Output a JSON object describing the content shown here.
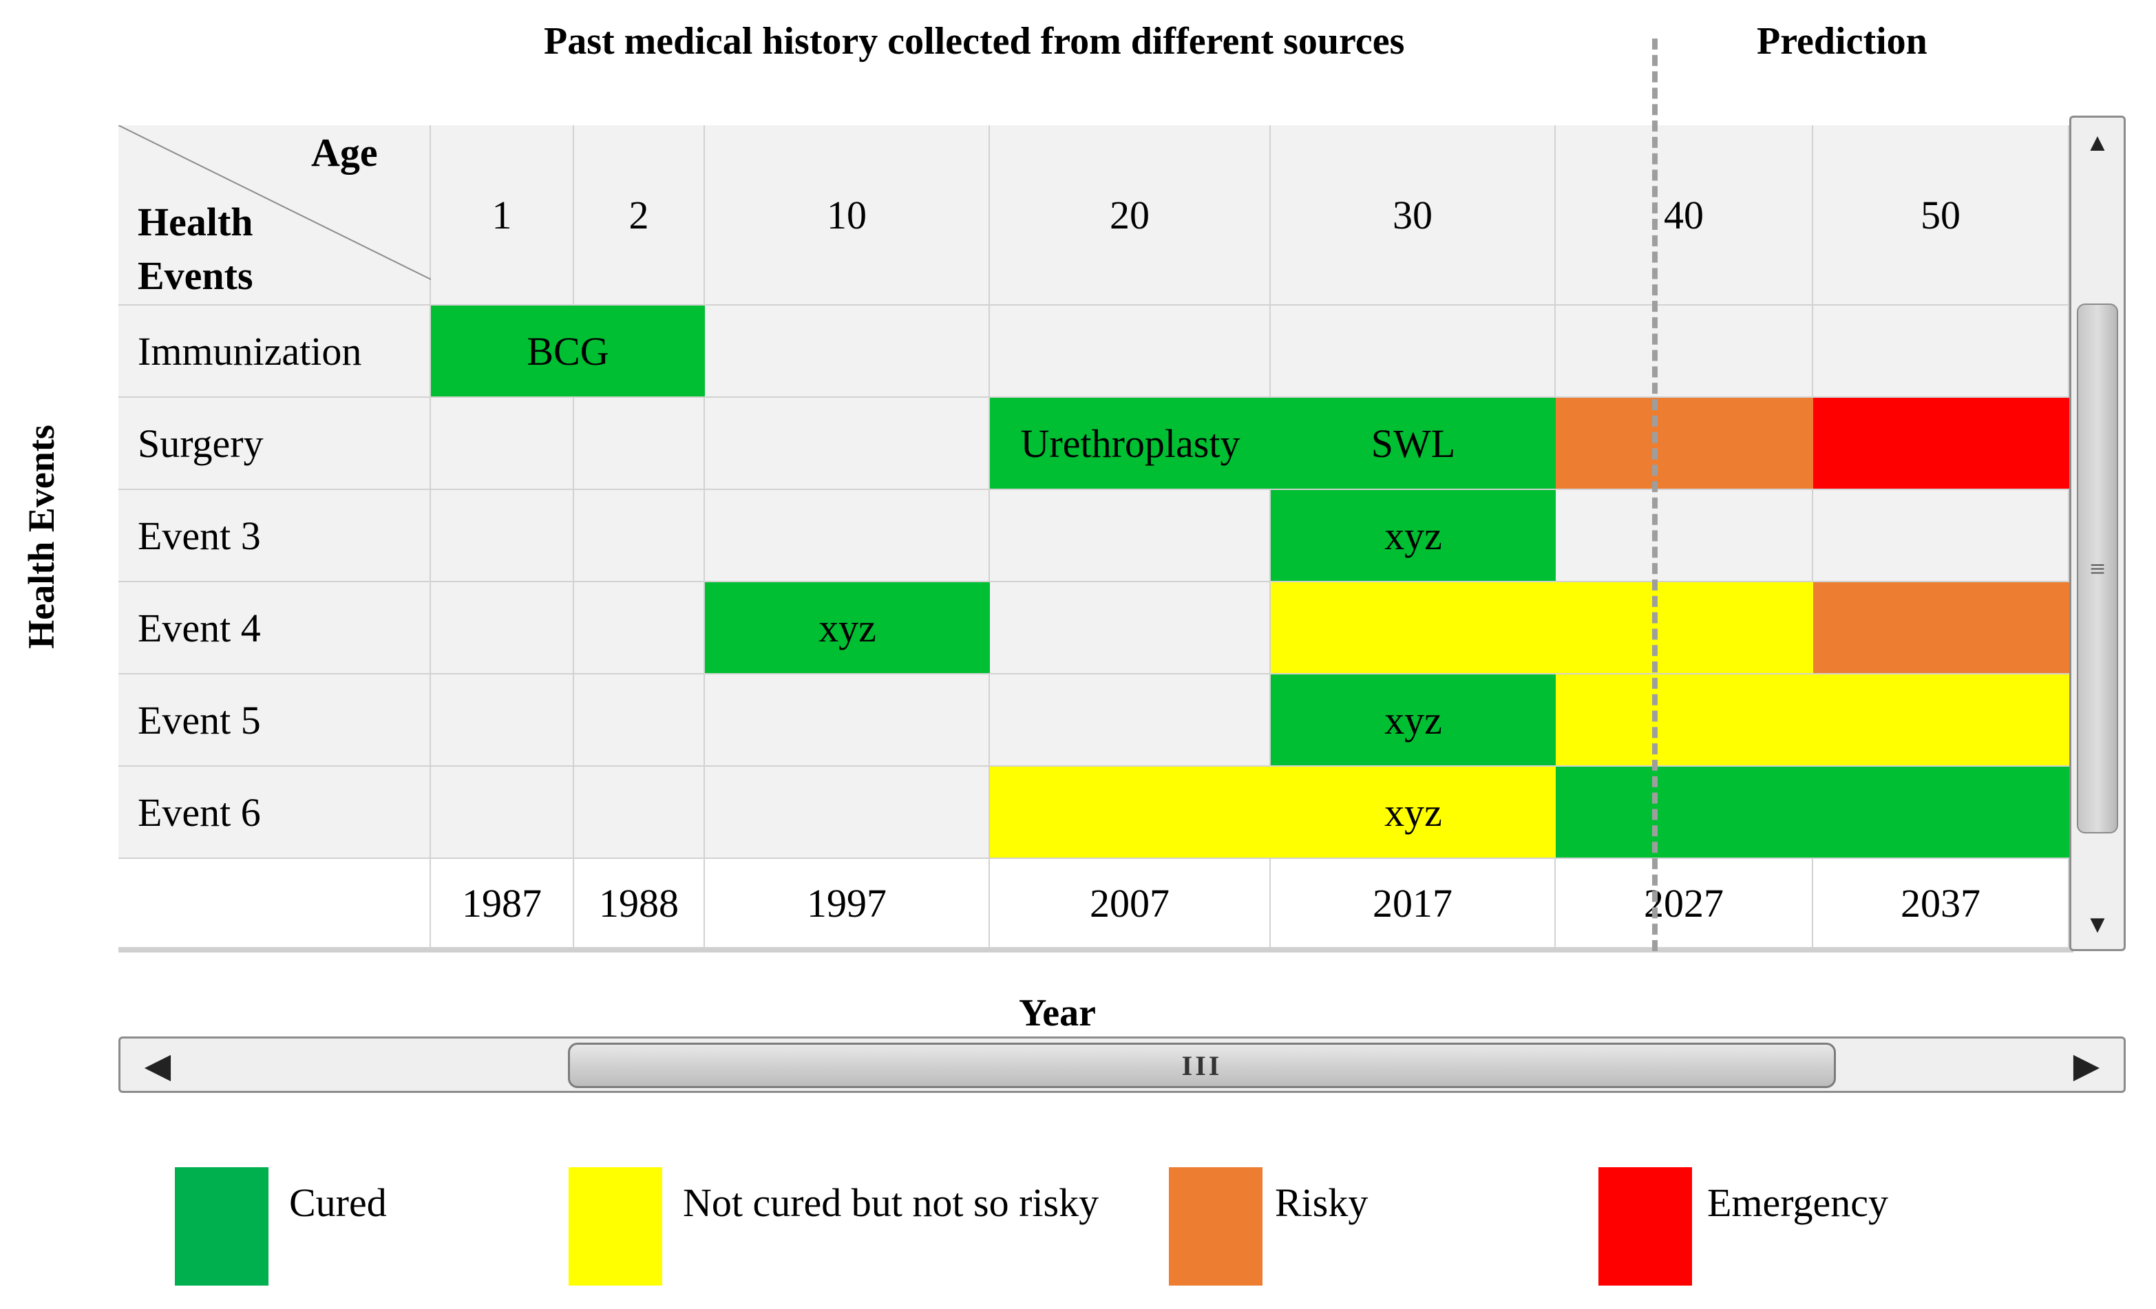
{
  "titles": {
    "history": "Past medical history collected from different sources",
    "prediction": "Prediction"
  },
  "axes": {
    "y_label": "Health Events",
    "x_label": "Year"
  },
  "header": {
    "corner_age": "Age",
    "corner_health": "Health\nEvents",
    "ages": [
      "1",
      "2",
      "10",
      "20",
      "30",
      "40",
      "50"
    ],
    "years": [
      "1987",
      "1988",
      "1997",
      "2007",
      "2017",
      "2027",
      "2037"
    ]
  },
  "rows": [
    {
      "label": "Immunization",
      "events": [
        {
          "start": 0,
          "span": 2,
          "status": "cured",
          "text": "BCG"
        }
      ]
    },
    {
      "label": "Surgery",
      "events": [
        {
          "start": 3,
          "span": 1,
          "status": "cured",
          "text": "Urethroplasty"
        },
        {
          "start": 4,
          "span": 1,
          "status": "cured",
          "text": "SWL"
        },
        {
          "start": 5,
          "span": 1,
          "status": "risky",
          "text": ""
        },
        {
          "start": 6,
          "span": 1,
          "status": "emergency",
          "text": ""
        }
      ]
    },
    {
      "label": "Event 3",
      "events": [
        {
          "start": 4,
          "span": 1,
          "status": "cured",
          "text": "xyz"
        }
      ]
    },
    {
      "label": "Event 4",
      "events": [
        {
          "start": 2,
          "span": 1,
          "status": "cured",
          "text": "xyz"
        },
        {
          "start": 4,
          "span": 2,
          "status": "not_risky",
          "text": ""
        },
        {
          "start": 6,
          "span": 1,
          "status": "risky",
          "text": ""
        }
      ]
    },
    {
      "label": "Event 5",
      "events": [
        {
          "start": 4,
          "span": 1,
          "status": "cured",
          "text": "xyz"
        },
        {
          "start": 5,
          "span": 2,
          "status": "not_risky",
          "text": ""
        }
      ]
    },
    {
      "label": "Event 6",
      "events": [
        {
          "start": 3,
          "span": 1,
          "status": "not_risky",
          "text": ""
        },
        {
          "start": 4,
          "span": 1,
          "status": "not_risky",
          "text": "xyz"
        },
        {
          "start": 5,
          "span": 2,
          "status": "cured",
          "text": ""
        }
      ]
    }
  ],
  "legend": [
    {
      "status": "cured",
      "label": "Cured",
      "color": "#00b04f"
    },
    {
      "status": "not_risky",
      "label": "Not cured but not so risky",
      "color": "#ffff00"
    },
    {
      "status": "risky",
      "label": "Risky",
      "color": "#ed7d31"
    },
    {
      "status": "emergency",
      "label": "Emergency",
      "color": "#ff0000"
    }
  ],
  "cell_colors": {
    "cured": "#00bf32",
    "not_risky": "#ffff00",
    "risky": "#ed7d31",
    "emergency": "#ff0000"
  },
  "scrollbars": {
    "vertical_thumb_glyph": "≡",
    "horizontal_thumb_glyph": "III",
    "up_glyph": "▲",
    "down_glyph": "▼",
    "left_glyph": "◀",
    "right_glyph": "▶"
  }
}
